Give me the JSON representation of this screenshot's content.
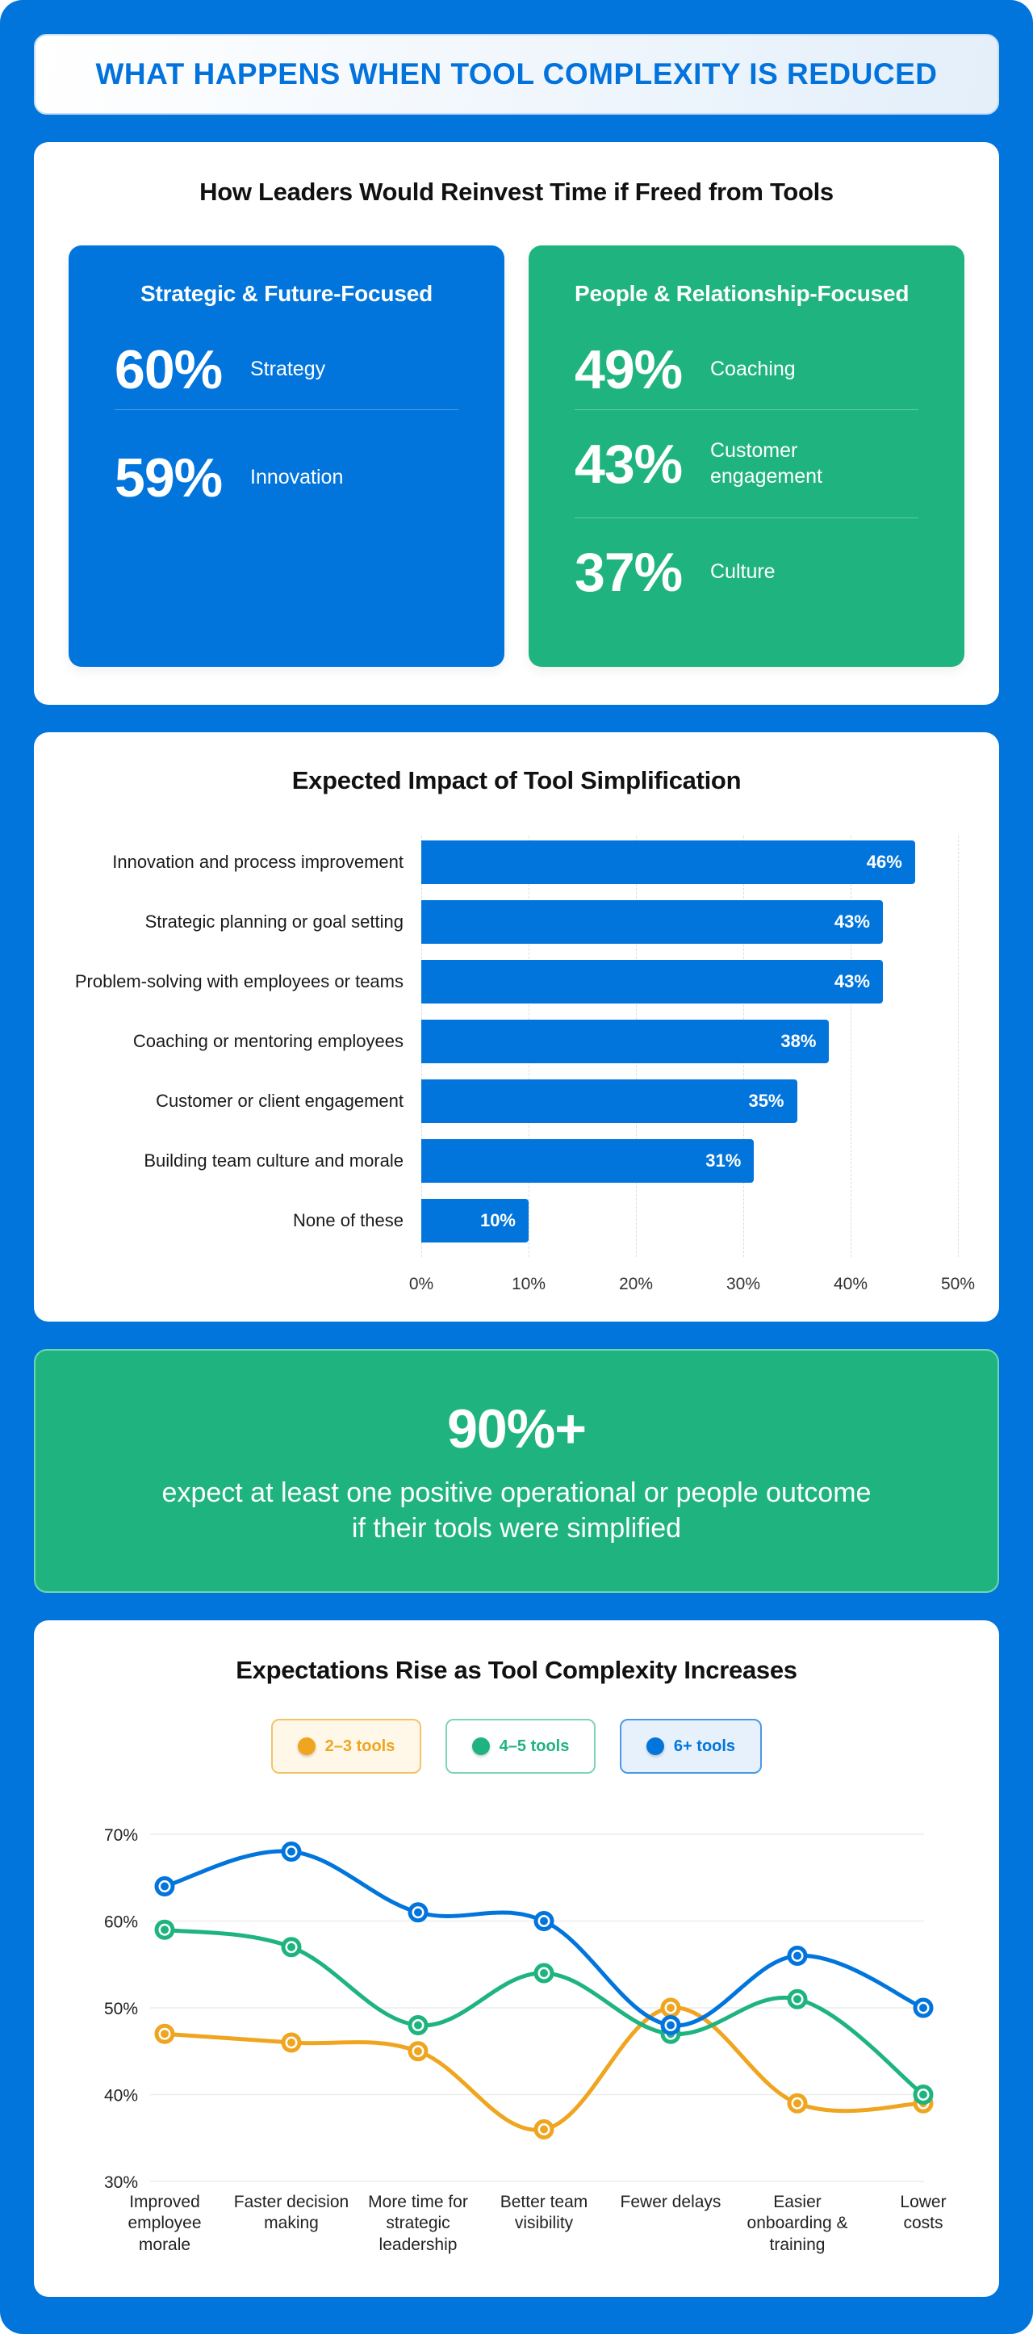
{
  "header": {
    "title": "WHAT HAPPENS WHEN TOOL COMPLEXITY IS REDUCED"
  },
  "colors": {
    "blue": "#0275dc",
    "green": "#1fb47f",
    "orange": "#efa51f",
    "background": "#0275dc"
  },
  "reinvest": {
    "title": "How Leaders Would Reinvest Time if Freed from Tools",
    "groups": [
      {
        "title": "Strategic & Future-Focused",
        "items": [
          {
            "pct": "60%",
            "label": "Strategy"
          },
          {
            "pct": "59%",
            "label": "Innovation"
          }
        ]
      },
      {
        "title": "People & Relationship-Focused",
        "items": [
          {
            "pct": "49%",
            "label": "Coaching"
          },
          {
            "pct": "43%",
            "label": "Customer engagement"
          },
          {
            "pct": "37%",
            "label": "Culture"
          }
        ]
      }
    ]
  },
  "impact": {
    "title": "Expected Impact of Tool Simplification",
    "bars": [
      {
        "label": "Innovation and process improvement",
        "value_label": "46%"
      },
      {
        "label": "Strategic planning or goal setting",
        "value_label": "43%"
      },
      {
        "label": "Problem-solving with employees or teams",
        "value_label": "43%"
      },
      {
        "label": "Coaching or mentoring employees",
        "value_label": "38%"
      },
      {
        "label": "Customer or client engagement",
        "value_label": "35%"
      },
      {
        "label": "Building team culture and morale",
        "value_label": "31%"
      },
      {
        "label": "None of these",
        "value_label": "10%"
      }
    ],
    "ticks": [
      "0%",
      "10%",
      "20%",
      "30%",
      "40%",
      "50%"
    ]
  },
  "callout": {
    "value": "90%+",
    "text": "expect at least one positive operational or people outcome if their tools were simplified"
  },
  "expectations": {
    "title": "Expectations Rise as Tool Complexity Increases",
    "legend": [
      "2–3 tools",
      "4–5 tools",
      "6+ tools"
    ],
    "yticks": [
      "70%",
      "60%",
      "50%",
      "40%",
      "30%"
    ],
    "categories": [
      "Improved employee morale",
      "Faster decision making",
      "More time for strategic leadership",
      "Better team visibility",
      "Fewer delays",
      "Easier onboarding & training",
      "Lower costs"
    ]
  },
  "chart_data": [
    {
      "type": "bar",
      "orientation": "horizontal",
      "title": "Expected Impact of Tool Simplification",
      "categories": [
        "Innovation and process improvement",
        "Strategic planning or goal setting",
        "Problem-solving with employees or teams",
        "Coaching or mentoring employees",
        "Customer or client engagement",
        "Building team culture and morale",
        "None of these"
      ],
      "values": [
        46,
        43,
        43,
        38,
        35,
        31,
        10
      ],
      "xlabel": "",
      "ylabel": "",
      "xlim": [
        0,
        50
      ],
      "grid": "vertical dashed",
      "data_labels": true
    },
    {
      "type": "line",
      "title": "Expectations Rise as Tool Complexity Increases",
      "categories": [
        "Improved employee morale",
        "Faster decision making",
        "More time for strategic leadership",
        "Better team visibility",
        "Fewer delays",
        "Easier onboarding & training",
        "Lower costs"
      ],
      "series": [
        {
          "name": "2–3 tools",
          "color": "#efa51f",
          "values": [
            47,
            46,
            45,
            36,
            50,
            39,
            39
          ]
        },
        {
          "name": "4–5 tools",
          "color": "#1fb47f",
          "values": [
            59,
            57,
            48,
            54,
            47,
            51,
            40
          ]
        },
        {
          "name": "6+ tools",
          "color": "#0275dc",
          "values": [
            64,
            68,
            61,
            60,
            48,
            56,
            50
          ]
        }
      ],
      "ylim": [
        30,
        70
      ],
      "yticks": [
        30,
        40,
        50,
        60,
        70
      ],
      "grid": "horizontal",
      "legend_position": "top",
      "smooth": true
    }
  ]
}
